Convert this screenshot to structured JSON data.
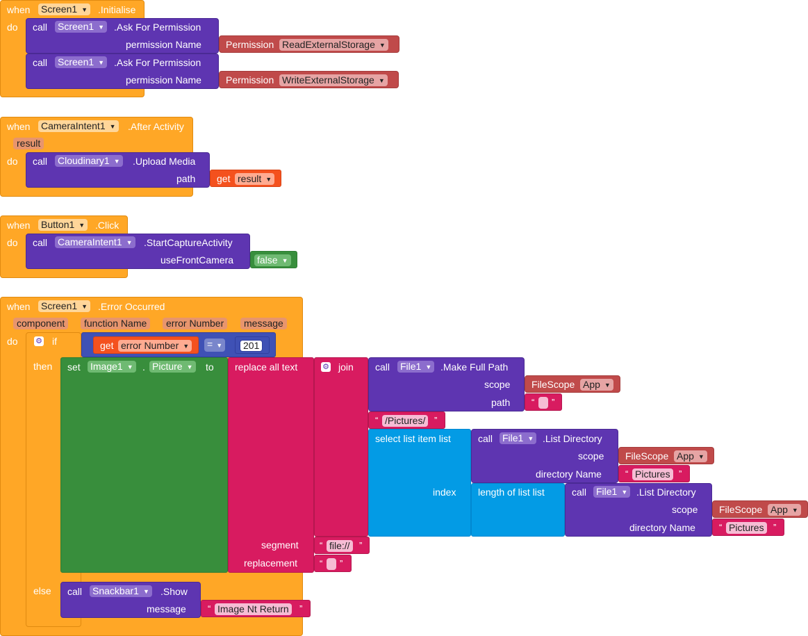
{
  "colors": {
    "event": "#ffa726",
    "call": "#5e35b1",
    "permission": "#c04a4a",
    "text": "#d81b60",
    "list": "#039be5",
    "component": "#388e3c",
    "variable": "#f4511e",
    "math": "#3f51b5"
  },
  "kw": {
    "when": "when",
    "do": "do",
    "call": "call",
    "if": "if",
    "then": "then",
    "else": "else",
    "get": "get",
    "set": "set",
    "to": "to",
    "join": "join",
    "dot": ".",
    "open_quote": "“",
    "close_quote": "”"
  },
  "block1": {
    "component": "Screen1",
    "event": ".Initialise",
    "call1": {
      "component": "Screen1",
      "method": ".Ask For Permission",
      "arg_label": "permission Name",
      "arg_block": "Permission",
      "arg_value": "ReadExternalStorage"
    },
    "call2": {
      "component": "Screen1",
      "method": ".Ask For Permission",
      "arg_label": "permission Name",
      "arg_block": "Permission",
      "arg_value": "WriteExternalStorage"
    }
  },
  "block2": {
    "component": "CameraIntent1",
    "event": ".After Activity",
    "param": "result",
    "call": {
      "component": "Cloudinary1",
      "method": ".Upload Media",
      "arg_label": "path",
      "arg_var": "result"
    }
  },
  "block3": {
    "component": "Button1",
    "event": ".Click",
    "call": {
      "component": "CameraIntent1",
      "method": ".StartCaptureActivity",
      "arg_label": "useFrontCamera",
      "arg_value": "false"
    }
  },
  "block4": {
    "component": "Screen1",
    "event": ".Error Occurred",
    "params": [
      "component",
      "function Name",
      "error Number",
      "message"
    ],
    "cond_var": "error Number",
    "cond_op": "=",
    "cond_value": "201",
    "set_component": "Image1",
    "set_property": "Picture",
    "replace_label": "replace all text",
    "makepath": {
      "component": "File1",
      "method": ".Make Full Path",
      "scope_label": "scope",
      "scope_block": "FileScope",
      "scope_value": "App",
      "path_label": "path"
    },
    "pictures_path": "/Pictures/",
    "select_label": "select list item  list",
    "index_label": "index",
    "listdir1": {
      "component": "File1",
      "method": ".List Directory",
      "scope_label": "scope",
      "scope_block": "FileScope",
      "scope_value": "App",
      "dir_label": "directory Name",
      "dir_value": "Pictures"
    },
    "length_label": "length of list  list",
    "listdir2": {
      "component": "File1",
      "method": ".List Directory",
      "scope_label": "scope",
      "scope_block": "FileScope",
      "scope_value": "App",
      "dir_label": "directory Name",
      "dir_value": "Pictures"
    },
    "segment_label": "segment",
    "segment_value": "file://",
    "replacement_label": "replacement",
    "snackbar": {
      "component": "Snackbar1",
      "method": ".Show",
      "arg_label": "message",
      "arg_value": "Image Nt Return"
    }
  }
}
